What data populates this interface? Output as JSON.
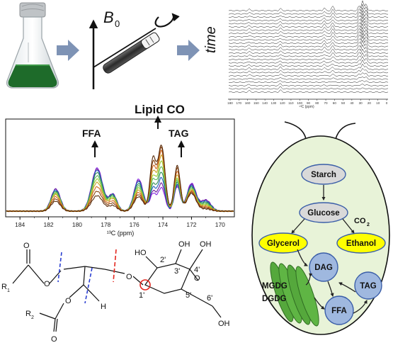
{
  "top_row": {
    "field_label": "B",
    "field_sub": "0",
    "time_label": "time",
    "stack_xticks": [
      "180",
      "170",
      "160",
      "150",
      "140",
      "130",
      "120",
      "110",
      "100",
      "90",
      "80",
      "70",
      "60",
      "50",
      "40",
      "30",
      "20",
      "10",
      "0"
    ],
    "stack_xlabel": "¹³C (ppm)"
  },
  "spectrum": {
    "annotations": {
      "ffa": "FFA",
      "lipid_co": "Lipid CO",
      "tag": "TAG"
    },
    "xticks": [
      "184",
      "182",
      "180",
      "178",
      "176",
      "174",
      "172",
      "170"
    ],
    "xlabel": "¹³C (ppm)",
    "series_colors": [
      "#8a2be2",
      "#6a1b9a",
      "#1f5fbf",
      "#2e8b57",
      "#5cb85c",
      "#9acd32",
      "#c9a227",
      "#d2691e",
      "#8b4513",
      "#5a2d0c"
    ]
  },
  "molecule": {
    "r1": "R",
    "r1_sub": "1",
    "r2": "R",
    "r2_sub": "2",
    "o": "O",
    "h": "H",
    "oh": "OH",
    "ho": "HO",
    "positions": [
      "2'",
      "3'",
      "4'",
      "5'",
      "6'",
      "1'"
    ]
  },
  "cell": {
    "starch": "Starch",
    "glucose": "Glucose",
    "co2": "CO",
    "co2_sub": "2",
    "glycerol": "Glycerol",
    "ethanol": "Ethanol",
    "dag": "DAG",
    "tag": "TAG",
    "ffa": "FFA",
    "mgdg": "MGDG",
    "dgdg": "DGDG",
    "colors": {
      "cell_fill": "#e8f3d8",
      "node_grey": "#d9d9d9",
      "node_yellow": "#ffff00",
      "node_blue": "#9fb8df",
      "thylakoid": "#55a83c"
    }
  }
}
